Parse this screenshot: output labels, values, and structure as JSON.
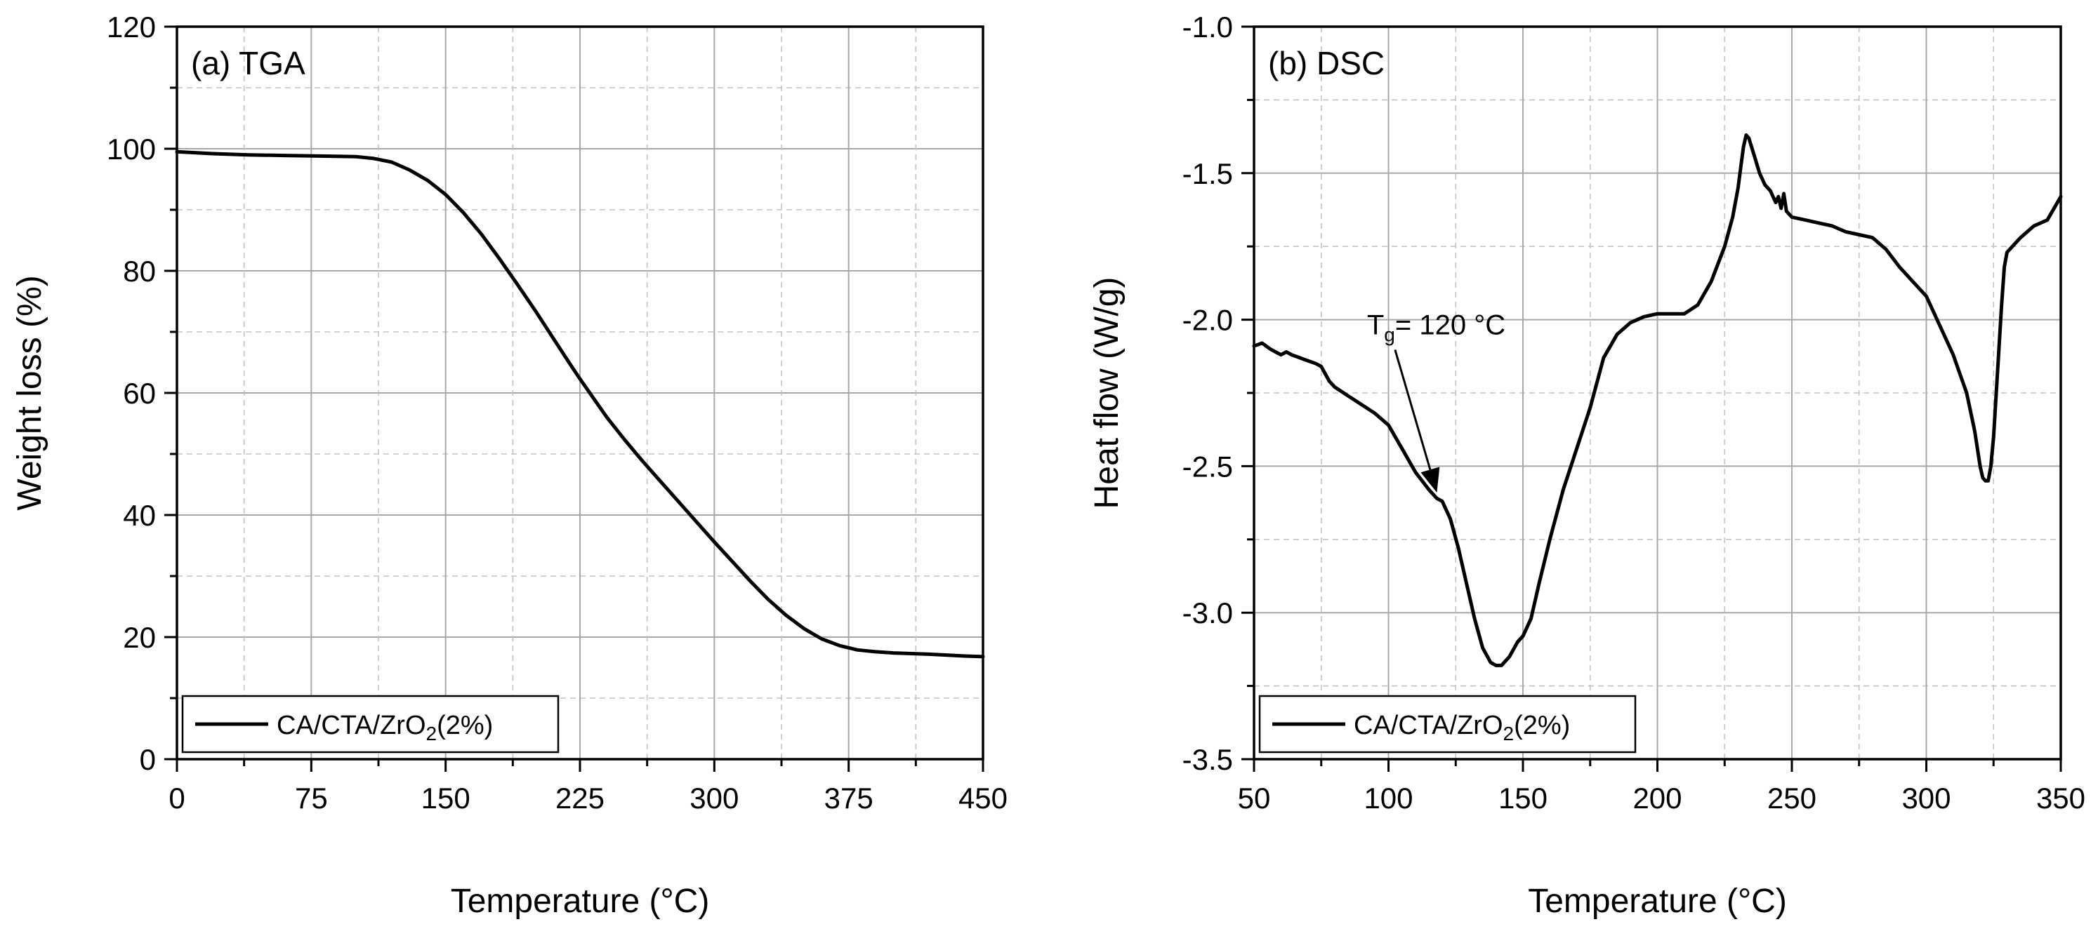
{
  "chart_data": [
    {
      "type": "line",
      "panel_label": "(a) TGA",
      "xlabel": "Temperature (°C)",
      "ylabel": "Weight loss (%)",
      "xlim": [
        0,
        450
      ],
      "ylim": [
        0,
        120
      ],
      "xticks": [
        0,
        75,
        150,
        225,
        300,
        375,
        450
      ],
      "xtick_labels": [
        "0",
        "75",
        "150",
        "225",
        "300",
        "375",
        "450"
      ],
      "yticks": [
        0,
        20,
        40,
        60,
        80,
        100,
        120
      ],
      "ytick_labels": [
        "0",
        "20",
        "40",
        "60",
        "80",
        "100",
        "120"
      ],
      "grid": true,
      "legend_position": "bottom-left",
      "legend": {
        "main": "CA/CTA/ZrO",
        "sub": "2",
        "suffix": "(2%)"
      },
      "series": [
        {
          "name": "CA/CTA/ZrO2(2%)",
          "x": [
            0,
            20,
            40,
            60,
            80,
            100,
            110,
            120,
            130,
            140,
            150,
            160,
            170,
            180,
            190,
            200,
            210,
            220,
            225,
            230,
            240,
            250,
            260,
            270,
            280,
            290,
            300,
            310,
            320,
            330,
            340,
            350,
            360,
            370,
            380,
            390,
            400,
            420,
            440,
            450
          ],
          "y": [
            99.5,
            99.2,
            99.0,
            98.9,
            98.8,
            98.7,
            98.4,
            97.8,
            96.5,
            94.8,
            92.5,
            89.5,
            86.0,
            82.0,
            77.8,
            73.5,
            69.0,
            64.5,
            62.3,
            60.2,
            56.0,
            52.3,
            48.8,
            45.5,
            42.2,
            38.9,
            35.6,
            32.4,
            29.2,
            26.2,
            23.6,
            21.4,
            19.7,
            18.6,
            17.9,
            17.6,
            17.4,
            17.2,
            16.9,
            16.8
          ]
        }
      ]
    },
    {
      "type": "line",
      "panel_label": "(b) DSC",
      "xlabel": "Temperature (°C)",
      "ylabel": "Heat flow (W/g)",
      "xlim": [
        50,
        350
      ],
      "ylim": [
        -3.5,
        -1.0
      ],
      "xticks": [
        50,
        100,
        150,
        200,
        250,
        300,
        350
      ],
      "xtick_labels": [
        "50",
        "100",
        "150",
        "200",
        "250",
        "300",
        "350"
      ],
      "yticks": [
        -3.5,
        -3.0,
        -2.5,
        -2.0,
        -1.5,
        -1.0
      ],
      "ytick_labels": [
        "-3.5",
        "-3.0",
        "-2.5",
        "-2.0",
        "-1.5",
        "-1.0"
      ],
      "grid": true,
      "legend_position": "bottom-left",
      "legend": {
        "main": "CA/CTA/ZrO",
        "sub": "2",
        "suffix": "(2%)"
      },
      "annotation": {
        "main": "T",
        "sub": "g",
        "rest": "= 120 °C",
        "point_x": 118,
        "point_y": -2.59,
        "text_x": 92,
        "text_y": -2.05
      },
      "series": [
        {
          "name": "CA/CTA/ZrO2(2%)",
          "x": [
            50,
            53,
            56,
            58,
            60,
            62,
            64,
            67,
            70,
            73,
            75,
            78,
            80,
            85,
            90,
            95,
            100,
            105,
            110,
            115,
            118,
            120,
            123,
            126,
            129,
            132,
            135,
            138,
            140,
            142,
            145,
            148,
            150,
            153,
            156,
            160,
            165,
            170,
            175,
            180,
            185,
            190,
            195,
            200,
            205,
            210,
            215,
            220,
            225,
            228,
            230,
            231,
            232,
            233,
            234,
            236,
            238,
            240,
            242,
            244,
            245,
            246,
            247,
            248,
            250,
            255,
            260,
            265,
            270,
            275,
            280,
            285,
            290,
            295,
            300,
            305,
            310,
            315,
            318,
            320,
            321,
            322,
            323,
            324,
            325,
            326,
            327,
            328,
            329,
            330,
            332,
            335,
            340,
            345,
            350
          ],
          "y": [
            -2.09,
            -2.08,
            -2.1,
            -2.11,
            -2.12,
            -2.11,
            -2.12,
            -2.13,
            -2.14,
            -2.15,
            -2.16,
            -2.21,
            -2.23,
            -2.26,
            -2.29,
            -2.32,
            -2.36,
            -2.44,
            -2.52,
            -2.58,
            -2.61,
            -2.62,
            -2.68,
            -2.78,
            -2.9,
            -3.02,
            -3.12,
            -3.17,
            -3.18,
            -3.18,
            -3.15,
            -3.1,
            -3.08,
            -3.02,
            -2.9,
            -2.75,
            -2.58,
            -2.44,
            -2.3,
            -2.13,
            -2.05,
            -2.01,
            -1.99,
            -1.98,
            -1.98,
            -1.98,
            -1.95,
            -1.87,
            -1.75,
            -1.65,
            -1.55,
            -1.48,
            -1.41,
            -1.37,
            -1.38,
            -1.44,
            -1.5,
            -1.54,
            -1.56,
            -1.6,
            -1.58,
            -1.62,
            -1.57,
            -1.63,
            -1.65,
            -1.66,
            -1.67,
            -1.68,
            -1.7,
            -1.71,
            -1.72,
            -1.76,
            -1.82,
            -1.87,
            -1.92,
            -2.02,
            -2.12,
            -2.25,
            -2.38,
            -2.5,
            -2.54,
            -2.55,
            -2.55,
            -2.5,
            -2.4,
            -2.25,
            -2.1,
            -1.95,
            -1.82,
            -1.77,
            -1.75,
            -1.72,
            -1.68,
            -1.66,
            -1.58
          ]
        }
      ]
    }
  ]
}
